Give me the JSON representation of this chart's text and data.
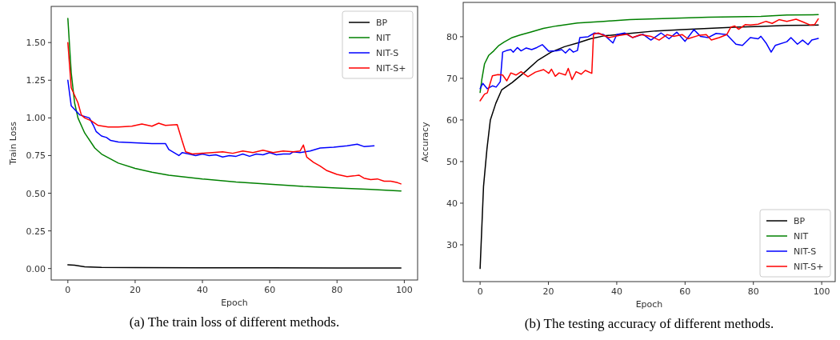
{
  "chart_data": [
    {
      "type": "line",
      "title": "(a) The train loss of different methods.",
      "xlabel": "Epoch",
      "ylabel": "Train Loss",
      "xlim": [
        -4.95,
        103.95
      ],
      "ylim": [
        -0.076,
        1.74
      ],
      "xticks": [
        0,
        20,
        40,
        60,
        80,
        100
      ],
      "yticks": [
        {
          "value": 0,
          "label": "0.00"
        },
        {
          "value": 0.25,
          "label": "0.25"
        },
        {
          "value": 0.5,
          "label": "0.50"
        },
        {
          "value": 0.75,
          "label": "0.75"
        },
        {
          "value": 1,
          "label": "1.00"
        },
        {
          "value": 1.25,
          "label": "1.25"
        },
        {
          "value": 1.5,
          "label": "1.50"
        }
      ],
      "grid": false,
      "legend": "top right",
      "series": [
        {
          "name": "BP",
          "color": "#000000",
          "x": [
            0,
            2,
            5,
            10,
            20,
            40,
            60,
            80,
            99
          ],
          "values": [
            0.025,
            0.022,
            0.012,
            0.008,
            0.006,
            0.005,
            0.005,
            0.004,
            0.004
          ]
        },
        {
          "name": "NIT",
          "color": "#008000",
          "x": [
            0,
            1,
            2,
            3,
            5,
            8,
            10,
            15,
            20,
            25,
            30,
            40,
            50,
            60,
            70,
            80,
            90,
            99
          ],
          "values": [
            1.66,
            1.3,
            1.1,
            1.0,
            0.9,
            0.8,
            0.76,
            0.7,
            0.665,
            0.64,
            0.62,
            0.595,
            0.575,
            0.56,
            0.545,
            0.535,
            0.525,
            0.515
          ]
        },
        {
          "name": "NIT-S",
          "color": "#0000ff",
          "x": [
            0,
            1,
            3.5,
            6.4,
            7.6,
            8.4,
            10,
            11.5,
            12.7,
            15,
            20,
            25,
            29,
            30,
            33,
            34,
            36,
            38,
            40,
            42,
            44,
            46,
            48,
            50,
            52,
            54,
            56,
            58,
            60,
            62,
            64,
            66,
            67,
            69,
            72,
            75,
            79,
            83,
            86,
            88,
            91
          ],
          "values": [
            1.25,
            1.08,
            1.02,
            1.0,
            0.95,
            0.91,
            0.88,
            0.87,
            0.85,
            0.84,
            0.835,
            0.83,
            0.83,
            0.79,
            0.75,
            0.77,
            0.76,
            0.75,
            0.76,
            0.75,
            0.755,
            0.74,
            0.75,
            0.745,
            0.76,
            0.745,
            0.76,
            0.755,
            0.77,
            0.755,
            0.76,
            0.76,
            0.775,
            0.77,
            0.78,
            0.8,
            0.805,
            0.815,
            0.825,
            0.81,
            0.815
          ]
        },
        {
          "name": "NIT-S+",
          "color": "#ff0000",
          "x": [
            0,
            1,
            3,
            4,
            5,
            7,
            9,
            12,
            15,
            19,
            22,
            25,
            27,
            29,
            32.5,
            34,
            35,
            37,
            40,
            43,
            46,
            49,
            52,
            55,
            58,
            61,
            64,
            67,
            69,
            70,
            71,
            73,
            75,
            77,
            80,
            83,
            85,
            86.5,
            88,
            90,
            92,
            94,
            96,
            98,
            99
          ],
          "values": [
            1.5,
            1.2,
            1.1,
            1.02,
            1.0,
            0.98,
            0.95,
            0.94,
            0.94,
            0.945,
            0.96,
            0.945,
            0.965,
            0.95,
            0.955,
            0.845,
            0.775,
            0.76,
            0.765,
            0.77,
            0.775,
            0.765,
            0.78,
            0.77,
            0.785,
            0.77,
            0.78,
            0.775,
            0.78,
            0.82,
            0.74,
            0.705,
            0.68,
            0.65,
            0.625,
            0.61,
            0.615,
            0.62,
            0.6,
            0.59,
            0.595,
            0.58,
            0.58,
            0.57,
            0.562
          ]
        }
      ]
    },
    {
      "type": "line",
      "title": "(b) The testing accuracy of different methods.",
      "xlabel": "Epoch",
      "ylabel": "Accuracy",
      "xlim": [
        -4.95,
        103.95
      ],
      "ylim": [
        21.15,
        88.25
      ],
      "xticks": [
        0,
        20,
        40,
        60,
        80,
        100
      ],
      "yticks": [
        30,
        40,
        50,
        60,
        70,
        80
      ],
      "grid": false,
      "legend": "bottom right",
      "series": [
        {
          "name": "BP",
          "color": "#000000",
          "x": [
            0,
            1,
            2,
            3,
            4.6,
            6.3,
            9.4,
            13.2,
            17,
            20.8,
            24.7,
            28.5,
            32.3,
            36.2,
            43.8,
            51.5,
            59.2,
            66.8,
            74.5,
            82.2,
            89.8,
            99
          ],
          "values": [
            24.3,
            44,
            53,
            60,
            64,
            67.2,
            69,
            71.6,
            74.4,
            76.3,
            77.6,
            78.5,
            79.5,
            80.2,
            80.8,
            81.4,
            81.7,
            82,
            82.3,
            82.5,
            82.7,
            82.8
          ]
        },
        {
          "name": "NIT",
          "color": "#008000",
          "x": [
            0,
            0.5,
            1.3,
            2.5,
            4,
            5.5,
            7,
            9.4,
            11.7,
            14.7,
            18.5,
            22.4,
            28.5,
            36.2,
            43.8,
            51.5,
            59.2,
            66.8,
            74.5,
            82.2,
            89.8,
            99
          ],
          "values": [
            66.6,
            69.7,
            73.5,
            75.5,
            76.6,
            77.9,
            78.7,
            79.8,
            80.4,
            81.1,
            82,
            82.6,
            83.3,
            83.7,
            84.1,
            84.3,
            84.5,
            84.7,
            84.8,
            84.9,
            85.2,
            85.3
          ]
        },
        {
          "name": "NIT-S",
          "color": "#0000ff",
          "x": [
            0,
            0.8,
            2.1,
            3.6,
            4.7,
            5.9,
            6.6,
            7.8,
            9,
            9.7,
            10.9,
            12,
            13.5,
            15.1,
            16.6,
            18.2,
            20.1,
            22.4,
            23.9,
            25,
            26.2,
            27.3,
            28.5,
            29.2,
            31.6,
            33.5,
            36.2,
            38.9,
            40,
            42.3,
            44.6,
            47.7,
            50,
            53,
            55.3,
            57.6,
            60,
            62.6,
            64.5,
            66.8,
            69.1,
            72.2,
            74.9,
            76.8,
            79.1,
            81.4,
            82.2,
            83.7,
            85.2,
            86.4,
            89.8,
            91,
            92.9,
            94.4,
            96,
            97.1,
            99
          ],
          "values": [
            67.5,
            68.8,
            67.5,
            68.2,
            67.9,
            69.2,
            76.3,
            76.7,
            76.9,
            76.3,
            77.4,
            76.6,
            77.3,
            76.9,
            77.4,
            78.1,
            76.5,
            76.6,
            76.9,
            76.1,
            77.1,
            76.3,
            76.7,
            79.8,
            80,
            80.9,
            80.5,
            78.5,
            80.5,
            80.9,
            79.8,
            80.6,
            79.2,
            80.9,
            79.5,
            81.1,
            78.9,
            81.7,
            80.1,
            79.8,
            80.8,
            80.5,
            78.2,
            77.9,
            79.8,
            79.5,
            80.1,
            78.5,
            76.3,
            77.9,
            78.8,
            79.8,
            78.2,
            79.2,
            78.1,
            79.2,
            79.6
          ]
        },
        {
          "name": "NIT-S+",
          "color": "#ff0000",
          "x": [
            0,
            1.3,
            2.1,
            3.6,
            5.2,
            6.6,
            7.8,
            9,
            10.5,
            12,
            14,
            16.2,
            18.6,
            20.1,
            20.9,
            22,
            23.1,
            25,
            25.8,
            26.9,
            28.1,
            29.6,
            30.8,
            32.7,
            33.2,
            34.6,
            37.7,
            40.8,
            43.1,
            44.6,
            47,
            50,
            52.4,
            54.7,
            56.6,
            59.2,
            60.8,
            63.9,
            66.2,
            67.7,
            70,
            72.2,
            73.4,
            74.5,
            75.7,
            77.6,
            79.1,
            81.4,
            83.7,
            85.5,
            87.5,
            89.8,
            92.5,
            94.4,
            96.7,
            97.9,
            99
          ],
          "values": [
            64.6,
            66.2,
            66.5,
            70.6,
            70.9,
            70.8,
            69.4,
            71.3,
            70.8,
            71.6,
            70.4,
            71.5,
            72.1,
            71.2,
            72.2,
            70.5,
            71.3,
            70.8,
            72.4,
            69.7,
            71.6,
            71,
            71.9,
            71.2,
            80.6,
            80.9,
            79.8,
            80.3,
            80.6,
            79.8,
            80.5,
            80.1,
            79.2,
            80.5,
            80.1,
            80.5,
            79.5,
            80.3,
            80.5,
            79.2,
            79.8,
            80.5,
            82.3,
            82.6,
            81.8,
            82.9,
            82.8,
            83,
            83.7,
            83.2,
            84.1,
            83.7,
            84.2,
            83.6,
            82.8,
            82.9,
            84.3
          ]
        }
      ]
    }
  ]
}
